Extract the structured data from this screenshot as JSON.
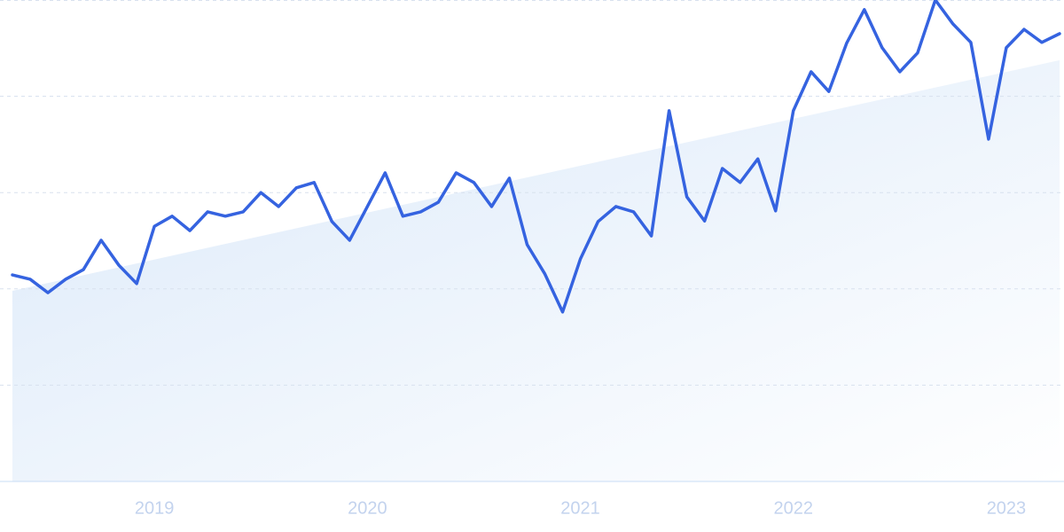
{
  "chart_data": {
    "type": "line",
    "categories": [
      null,
      null,
      null,
      null,
      null,
      null,
      null,
      null,
      "2019",
      null,
      null,
      null,
      null,
      null,
      null,
      null,
      null,
      null,
      null,
      null,
      "2020",
      null,
      null,
      null,
      null,
      null,
      null,
      null,
      null,
      null,
      null,
      null,
      "2021",
      null,
      null,
      null,
      null,
      null,
      null,
      null,
      null,
      null,
      null,
      null,
      "2022",
      null,
      null,
      null,
      null,
      null,
      null,
      null,
      null,
      null,
      null,
      null,
      "2023",
      null,
      null,
      null
    ],
    "series": [
      {
        "color": "#3563e0",
        "values": [
          42.9,
          42.0,
          39.2,
          42.0,
          44.0,
          50.1,
          44.9,
          41.1,
          53.0,
          55.1,
          52.1,
          56.0,
          55.1,
          56.0,
          60.0,
          57.1,
          61.0,
          62.1,
          54.0,
          50.1,
          57.1,
          64.1,
          55.1,
          56.0,
          58.0,
          64.1,
          62.1,
          57.1,
          63.0,
          49.2,
          43.1,
          35.2,
          46.2,
          54.0,
          57.1,
          56.0,
          51.0,
          77.0,
          59.1,
          54.1,
          65.0,
          62.1,
          67.0,
          56.2,
          77.0,
          85.1,
          81.0,
          91.0,
          98.0,
          90.1,
          85.1,
          89.0,
          100,
          95.0,
          91.2,
          71.1,
          90.1,
          93.9,
          91.2,
          93.0
        ]
      }
    ],
    "trend": {
      "color": "#dceaf9",
      "values": [
        39.6,
        87.5
      ]
    },
    "ylim": [
      0,
      100
    ],
    "yticks": [
      0,
      20,
      40,
      60,
      80,
      100
    ],
    "grid": true
  }
}
